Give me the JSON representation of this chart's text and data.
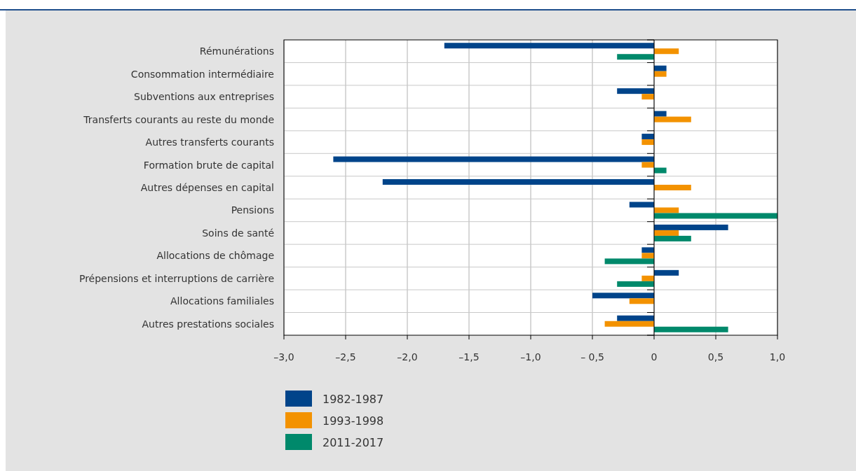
{
  "chart_data": {
    "type": "bar",
    "orientation": "horizontal",
    "categories": [
      "Rémunérations",
      "Consommation intermédiaire",
      "Subventions aux entreprises",
      "Transferts courants au reste du monde",
      "Autres transferts courants",
      "Formation brute de capital",
      "Autres dépenses en capital",
      "Pensions",
      "Soins de santé",
      "Allocations de chômage",
      "Prépensions et interruptions de carrière",
      "Allocations familiales",
      "Autres prestations sociales"
    ],
    "series": [
      {
        "name": "1982-1987",
        "color": "#00448a",
        "values": [
          -1.7,
          0.1,
          -0.3,
          0.1,
          -0.1,
          -2.6,
          -2.2,
          -0.2,
          0.6,
          -0.1,
          0.2,
          -0.5,
          -0.3
        ]
      },
      {
        "name": "1993-1998",
        "color": "#f39200",
        "values": [
          0.2,
          0.1,
          -0.1,
          0.3,
          -0.1,
          -0.1,
          0.3,
          0.2,
          0.2,
          -0.1,
          -0.1,
          -0.2,
          -0.4
        ]
      },
      {
        "name": "2011-2017",
        "color": "#00896b",
        "values": [
          -0.3,
          null,
          null,
          null,
          null,
          0.1,
          null,
          1.0,
          0.3,
          -0.4,
          -0.3,
          null,
          0.6
        ]
      }
    ],
    "xlim": [
      -3,
      1
    ],
    "xticks": [
      {
        "value": -3,
        "label": "–3,0"
      },
      {
        "value": -2.5,
        "label": "–2,5"
      },
      {
        "value": -2,
        "label": "–2,0"
      },
      {
        "value": -1.5,
        "label": "–1,5"
      },
      {
        "value": -1,
        "label": "–1,0"
      },
      {
        "value": -0.5,
        "label": "– 0,5"
      },
      0,
      {
        "value": 0.5,
        "label": "0,5"
      },
      {
        "value": 1,
        "label": "1,0"
      }
    ],
    "grid": true,
    "legend": "bottom"
  }
}
